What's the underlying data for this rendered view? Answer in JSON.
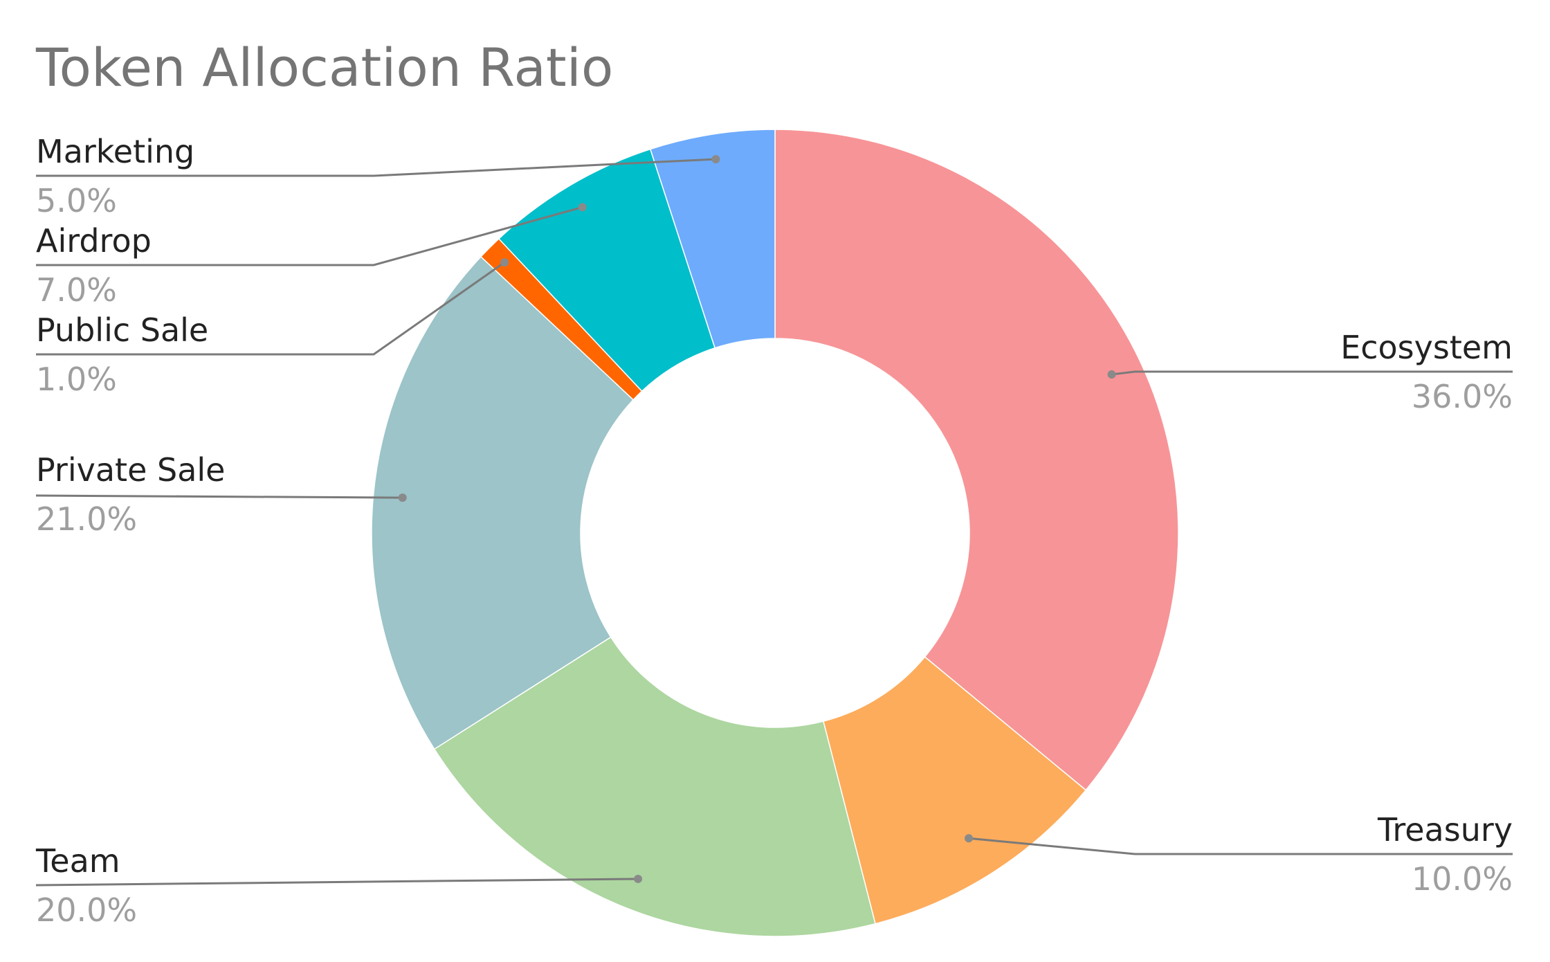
{
  "chart_data": {
    "type": "pie",
    "title": "Token Allocation Ratio",
    "donut": true,
    "slices": [
      {
        "label": "Ecosystem",
        "value": 36.0,
        "display": "36.0%",
        "color": "#F79497"
      },
      {
        "label": "Treasury",
        "value": 10.0,
        "display": "10.0%",
        "color": "#FDAC5C"
      },
      {
        "label": "Team",
        "value": 20.0,
        "display": "20.0%",
        "color": "#ADD6A0"
      },
      {
        "label": "Private Sale",
        "value": 21.0,
        "display": "21.0%",
        "color": "#9CC4C9"
      },
      {
        "label": "Public Sale",
        "value": 1.0,
        "display": "1.0%",
        "color": "#FF6600"
      },
      {
        "label": "Airdrop",
        "value": 7.0,
        "display": "7.0%",
        "color": "#00BECA"
      },
      {
        "label": "Marketing",
        "value": 5.0,
        "display": "5.0%",
        "color": "#6EABFC"
      }
    ]
  }
}
